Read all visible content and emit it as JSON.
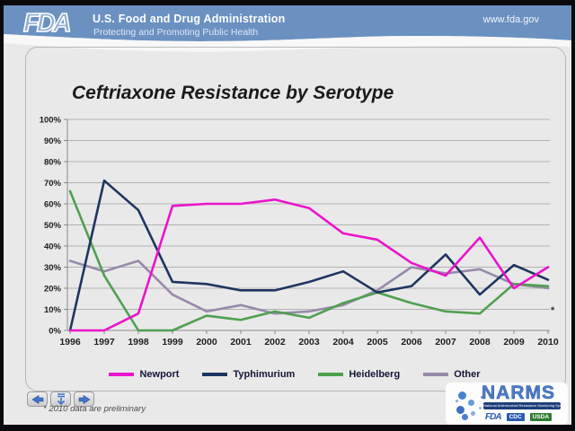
{
  "header": {
    "logo_text": "FDA",
    "org_name": "U.S. Food and Drug Administration",
    "tagline": "Protecting and Promoting Public Health",
    "website": "www.fda.gov"
  },
  "slide": {
    "title": "Ceftriaxone Resistance by Serotype",
    "footnote": "* 2010 data are preliminary",
    "asterisk_marker": "*"
  },
  "nav": {
    "back_icon": "left-arrow",
    "down_icon": "down-arrow",
    "forward_icon": "right-arrow"
  },
  "narms": {
    "name": "NARMS",
    "banner": "National Antimicrobial Resistance Monitoring System",
    "agencies": [
      "FDA",
      "CDC",
      "USDA"
    ]
  },
  "chart_data": {
    "type": "line",
    "title": "Ceftriaxone Resistance by Serotype",
    "x": [
      1996,
      1997,
      1998,
      1999,
      2000,
      2001,
      2002,
      2003,
      2004,
      2005,
      2006,
      2007,
      2008,
      2009,
      2010
    ],
    "series": [
      {
        "name": "Newport",
        "color": "#ea14cb",
        "values": [
          0,
          0,
          8,
          59,
          60,
          60,
          62,
          58,
          46,
          43,
          32,
          26,
          44,
          20,
          30
        ]
      },
      {
        "name": "Typhimurium",
        "color": "#1e3560",
        "values": [
          0,
          71,
          57,
          23,
          22,
          19,
          19,
          23,
          28,
          18,
          21,
          36,
          17,
          31,
          24
        ]
      },
      {
        "name": "Heidelberg",
        "color": "#4fa04f",
        "values": [
          66,
          26,
          0,
          0,
          7,
          5,
          9,
          6,
          13,
          18,
          13,
          9,
          8,
          22,
          21
        ]
      },
      {
        "name": "Other",
        "color": "#968aab",
        "values": [
          33,
          28,
          33,
          17,
          9,
          12,
          8,
          9,
          12,
          19,
          30,
          27,
          29,
          22,
          20
        ]
      }
    ],
    "xlabel": "",
    "ylabel": "",
    "ylim": [
      0,
      100
    ],
    "ytick_step": 10,
    "ytick_format": "percent",
    "grid": true,
    "legend_position": "bottom"
  },
  "colors": {
    "header_blue": "#6b91c1",
    "slide_bg": "#e9e9e9",
    "gridline": "#b2b2b2",
    "axis": "#8a8a8a",
    "tick_label": "#1d1d1d",
    "accent_blue": "#3f74c8"
  }
}
